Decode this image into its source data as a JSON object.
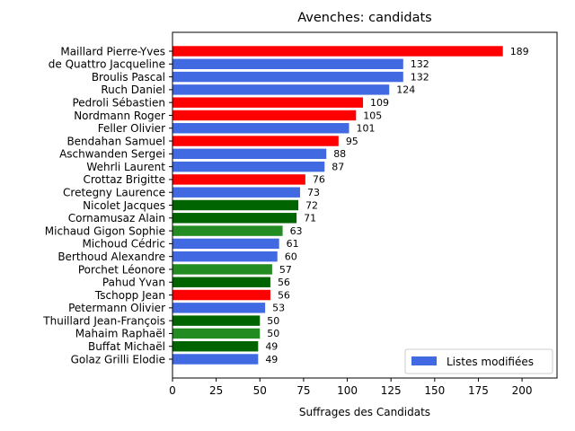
{
  "chart_data": {
    "type": "bar",
    "orientation": "horizontal",
    "title": "Avenches: candidats",
    "xlabel": "Suffrages des Candidats",
    "ylabel": "",
    "xlim": [
      0,
      220
    ],
    "xticks": [
      0,
      25,
      50,
      75,
      100,
      125,
      150,
      175,
      200
    ],
    "legend": {
      "position": "lower-right",
      "entries": [
        {
          "label": "Listes modifiées",
          "color": "#4169e1"
        }
      ]
    },
    "categories": [
      "Maillard Pierre-Yves",
      "de Quattro Jacqueline",
      "Broulis Pascal",
      "Ruch Daniel",
      "Pedroli Sébastien",
      "Nordmann Roger",
      "Feller Olivier",
      "Bendahan Samuel",
      "Aschwanden Sergei",
      "Wehrli Laurent",
      "Crottaz Brigitte",
      "Cretegny Laurence",
      "Nicolet Jacques",
      "Cornamusaz Alain",
      "Michaud Gigon Sophie",
      "Michoud Cédric",
      "Berthoud Alexandre",
      "Porchet Léonore",
      "Pahud Yvan",
      "Tschopp Jean",
      "Petermann Olivier",
      "Thuillard Jean-François",
      "Mahaim Raphaël",
      "Buffat Michaël",
      "Golaz Grilli Elodie"
    ],
    "values": [
      189,
      132,
      132,
      124,
      109,
      105,
      101,
      95,
      88,
      87,
      76,
      73,
      72,
      71,
      63,
      61,
      60,
      57,
      56,
      56,
      53,
      50,
      50,
      49,
      49
    ],
    "colors": [
      "#ff0000",
      "#4169e1",
      "#4169e1",
      "#4169e1",
      "#ff0000",
      "#ff0000",
      "#4169e1",
      "#ff0000",
      "#4169e1",
      "#4169e1",
      "#ff0000",
      "#4169e1",
      "#006400",
      "#006400",
      "#228b22",
      "#4169e1",
      "#4169e1",
      "#228b22",
      "#006400",
      "#ff0000",
      "#4169e1",
      "#006400",
      "#228b22",
      "#006400",
      "#4169e1"
    ]
  }
}
